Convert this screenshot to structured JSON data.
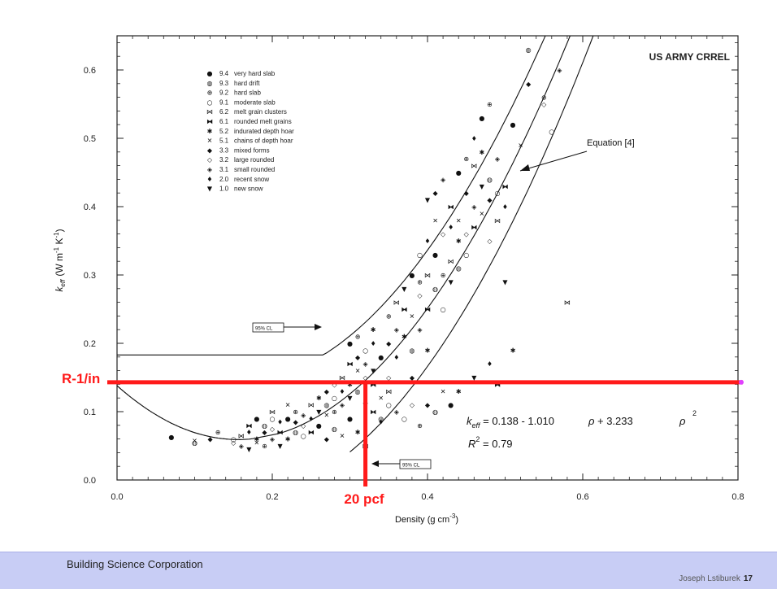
{
  "chart_data": {
    "type": "scatter",
    "watermark": "US ARMY CRREL",
    "xlabel": "Density (g cm",
    "xlabel_sup": "-3",
    "xlabel_close": ")",
    "ylabel": "k",
    "ylabel_sub": "eff",
    "ylabel_units": "(W m",
    "ylabel_units_sup1": "-1",
    "ylabel_units_mid": " K",
    "ylabel_units_sup2": "-1",
    "ylabel_units_close": ")",
    "xlim": [
      0.0,
      0.8
    ],
    "ylim": [
      0.0,
      0.65
    ],
    "x_ticks": [
      "0.0",
      "0.2",
      "0.4",
      "0.6",
      "0.8"
    ],
    "y_ticks": [
      "0.0",
      "0.1",
      "0.2",
      "0.3",
      "0.4",
      "0.5",
      "0.6"
    ],
    "legend": [
      {
        "code": "9.4",
        "label": "very hard slab",
        "symbol": "●"
      },
      {
        "code": "9.3",
        "label": "hard drift",
        "symbol": "◍"
      },
      {
        "code": "9.2",
        "label": "hard slab",
        "symbol": "⊕"
      },
      {
        "code": "9.1",
        "label": "moderate slab",
        "symbol": "○"
      },
      {
        "code": "6.2",
        "label": "melt grain clusters",
        "symbol": "⋈"
      },
      {
        "code": "6.1",
        "label": "rounded melt grains",
        "symbol": "⧓"
      },
      {
        "code": "5.2",
        "label": "indurated depth hoar",
        "symbol": "✱"
      },
      {
        "code": "5.1",
        "label": "chains of depth hoar",
        "symbol": "✕"
      },
      {
        "code": "3.3",
        "label": "mixed forms",
        "symbol": "◆"
      },
      {
        "code": "3.2",
        "label": "large rounded",
        "symbol": "◇"
      },
      {
        "code": "3.1",
        "label": "small rounded",
        "symbol": "◈"
      },
      {
        "code": "2.0",
        "label": "recent snow",
        "symbol": "♦"
      },
      {
        "code": "1.0",
        "label": "new snow",
        "symbol": "▼"
      }
    ],
    "equation_line": {
      "name": "Equation [4]",
      "coefficients": [
        0.138,
        -1.01,
        3.233
      ]
    },
    "confidence_band_label": "95% CL",
    "equation": {
      "k_symbol": "k",
      "k_sub": "eff",
      "text1": " = 0.138 - 1.010",
      "rho1": "ρ",
      "text2": "+ 3.233",
      "rho2": "ρ",
      "sup": "2",
      "r2_symbol": "R",
      "r2_sup": "2",
      "r2_text": " = 0.79"
    },
    "annotations": {
      "r_value_label": "R-1/in",
      "r_value_y": 0.143,
      "density_label": "20 pcf",
      "density_x": 0.32
    },
    "points": [
      [
        0.07,
        0.063
      ],
      [
        0.1,
        0.058
      ],
      [
        0.1,
        0.055
      ],
      [
        0.12,
        0.06
      ],
      [
        0.13,
        0.07
      ],
      [
        0.15,
        0.055
      ],
      [
        0.15,
        0.06
      ],
      [
        0.16,
        0.05
      ],
      [
        0.16,
        0.065
      ],
      [
        0.17,
        0.07
      ],
      [
        0.17,
        0.08
      ],
      [
        0.17,
        0.045
      ],
      [
        0.18,
        0.06
      ],
      [
        0.18,
        0.09
      ],
      [
        0.18,
        0.055
      ],
      [
        0.19,
        0.08
      ],
      [
        0.19,
        0.07
      ],
      [
        0.19,
        0.05
      ],
      [
        0.2,
        0.075
      ],
      [
        0.2,
        0.09
      ],
      [
        0.2,
        0.06
      ],
      [
        0.2,
        0.1
      ],
      [
        0.21,
        0.085
      ],
      [
        0.21,
        0.07
      ],
      [
        0.21,
        0.05
      ],
      [
        0.22,
        0.06
      ],
      [
        0.22,
        0.09
      ],
      [
        0.22,
        0.11
      ],
      [
        0.23,
        0.07
      ],
      [
        0.23,
        0.085
      ],
      [
        0.23,
        0.1
      ],
      [
        0.24,
        0.08
      ],
      [
        0.24,
        0.065
      ],
      [
        0.24,
        0.095
      ],
      [
        0.25,
        0.11
      ],
      [
        0.25,
        0.09
      ],
      [
        0.25,
        0.07
      ],
      [
        0.26,
        0.1
      ],
      [
        0.26,
        0.12
      ],
      [
        0.26,
        0.08
      ],
      [
        0.27,
        0.095
      ],
      [
        0.27,
        0.11
      ],
      [
        0.27,
        0.13
      ],
      [
        0.28,
        0.1
      ],
      [
        0.28,
        0.14
      ],
      [
        0.28,
        0.12
      ],
      [
        0.29,
        0.11
      ],
      [
        0.29,
        0.15
      ],
      [
        0.29,
        0.13
      ],
      [
        0.3,
        0.17
      ],
      [
        0.3,
        0.12
      ],
      [
        0.3,
        0.14
      ],
      [
        0.3,
        0.2
      ],
      [
        0.31,
        0.16
      ],
      [
        0.31,
        0.13
      ],
      [
        0.31,
        0.18
      ],
      [
        0.31,
        0.21
      ],
      [
        0.32,
        0.15
      ],
      [
        0.32,
        0.19
      ],
      [
        0.32,
        0.17
      ],
      [
        0.32,
        0.05
      ],
      [
        0.33,
        0.2
      ],
      [
        0.33,
        0.14
      ],
      [
        0.33,
        0.16
      ],
      [
        0.33,
        0.22
      ],
      [
        0.34,
        0.18
      ],
      [
        0.34,
        0.12
      ],
      [
        0.34,
        0.09
      ],
      [
        0.35,
        0.2
      ],
      [
        0.35,
        0.24
      ],
      [
        0.35,
        0.15
      ],
      [
        0.35,
        0.11
      ],
      [
        0.36,
        0.22
      ],
      [
        0.36,
        0.26
      ],
      [
        0.36,
        0.18
      ],
      [
        0.37,
        0.25
      ],
      [
        0.37,
        0.28
      ],
      [
        0.37,
        0.21
      ],
      [
        0.38,
        0.3
      ],
      [
        0.38,
        0.24
      ],
      [
        0.38,
        0.19
      ],
      [
        0.38,
        0.15
      ],
      [
        0.39,
        0.29
      ],
      [
        0.39,
        0.27
      ],
      [
        0.39,
        0.33
      ],
      [
        0.39,
        0.22
      ],
      [
        0.4,
        0.3
      ],
      [
        0.4,
        0.35
      ],
      [
        0.4,
        0.25
      ],
      [
        0.4,
        0.41
      ],
      [
        0.4,
        0.19
      ],
      [
        0.41,
        0.33
      ],
      [
        0.41,
        0.38
      ],
      [
        0.41,
        0.28
      ],
      [
        0.41,
        0.42
      ],
      [
        0.42,
        0.3
      ],
      [
        0.42,
        0.36
      ],
      [
        0.42,
        0.25
      ],
      [
        0.42,
        0.44
      ],
      [
        0.43,
        0.32
      ],
      [
        0.43,
        0.37
      ],
      [
        0.43,
        0.4
      ],
      [
        0.43,
        0.29
      ],
      [
        0.44,
        0.35
      ],
      [
        0.44,
        0.45
      ],
      [
        0.44,
        0.38
      ],
      [
        0.44,
        0.31
      ],
      [
        0.45,
        0.42
      ],
      [
        0.45,
        0.47
      ],
      [
        0.45,
        0.36
      ],
      [
        0.45,
        0.33
      ],
      [
        0.46,
        0.4
      ],
      [
        0.46,
        0.46
      ],
      [
        0.46,
        0.5
      ],
      [
        0.46,
        0.37
      ],
      [
        0.47,
        0.43
      ],
      [
        0.47,
        0.48
      ],
      [
        0.47,
        0.53
      ],
      [
        0.47,
        0.39
      ],
      [
        0.48,
        0.44
      ],
      [
        0.48,
        0.41
      ],
      [
        0.48,
        0.55
      ],
      [
        0.48,
        0.35
      ],
      [
        0.49,
        0.42
      ],
      [
        0.49,
        0.47
      ],
      [
        0.49,
        0.38
      ],
      [
        0.5,
        0.4
      ],
      [
        0.5,
        0.43
      ],
      [
        0.5,
        0.29
      ],
      [
        0.51,
        0.19
      ],
      [
        0.51,
        0.52
      ],
      [
        0.52,
        0.49
      ],
      [
        0.53,
        0.63
      ],
      [
        0.53,
        0.58
      ],
      [
        0.55,
        0.56
      ],
      [
        0.55,
        0.55
      ],
      [
        0.56,
        0.51
      ],
      [
        0.57,
        0.6
      ],
      [
        0.58,
        0.26
      ],
      [
        0.48,
        0.17
      ],
      [
        0.49,
        0.14
      ],
      [
        0.46,
        0.15
      ],
      [
        0.44,
        0.13
      ],
      [
        0.43,
        0.11
      ],
      [
        0.42,
        0.13
      ],
      [
        0.41,
        0.1
      ],
      [
        0.4,
        0.11
      ],
      [
        0.39,
        0.08
      ],
      [
        0.38,
        0.11
      ],
      [
        0.37,
        0.09
      ],
      [
        0.36,
        0.1
      ],
      [
        0.35,
        0.13
      ],
      [
        0.34,
        0.085
      ],
      [
        0.33,
        0.1
      ],
      [
        0.32,
        0.11
      ],
      [
        0.31,
        0.07
      ],
      [
        0.3,
        0.09
      ],
      [
        0.29,
        0.065
      ],
      [
        0.28,
        0.075
      ],
      [
        0.27,
        0.06
      ]
    ]
  },
  "footer": {
    "org": "Building Science Corporation",
    "author": "Joseph Lstiburek",
    "page": "17"
  },
  "colors": {
    "accent_red": "#ff1a1a",
    "footer_bg": "#c8cdf5"
  }
}
